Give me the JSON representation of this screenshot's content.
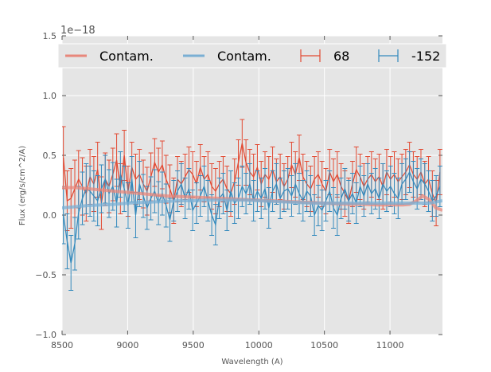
{
  "chart_data": {
    "type": "line",
    "title": "",
    "xlabel": "Wavelength (A)",
    "ylabel": "Flux (erg/s/cm^2/A)",
    "y_offset_label": "1e−18",
    "xlim": [
      8500,
      11400
    ],
    "ylim": [
      -1.0,
      1.5
    ],
    "xticks": [
      8500,
      9000,
      9500,
      10000,
      10500,
      11000
    ],
    "xtick_labels": [
      "8500",
      "9000",
      "9500",
      "10000",
      "10500",
      "11000"
    ],
    "yticks": [
      -1.0,
      -0.5,
      0.0,
      0.5,
      1.0,
      1.5
    ],
    "ytick_labels": [
      "−1.0",
      "−0.5",
      "0.0",
      "0.5",
      "1.0",
      "1.5"
    ],
    "grid": true,
    "legend_placement": "top",
    "legend": [
      {
        "label": "Contam.",
        "kind": "line",
        "color": "#E8877B"
      },
      {
        "label": "Contam.",
        "kind": "line",
        "color": "#7AAFD4"
      },
      {
        "label": "68",
        "kind": "errorbar",
        "color": "#E24A33"
      },
      {
        "label": "-152",
        "kind": "errorbar",
        "color": "#348ABD"
      }
    ],
    "colors": {
      "axes_bg": "#E5E5E5",
      "grid": "#FFFFFF",
      "red": "#E24A33",
      "blue": "#348ABD",
      "red_contam": "#E8877B",
      "blue_contam": "#7AAFD4"
    },
    "series": [
      {
        "name": "68",
        "kind": "errorbar",
        "color": "#E24A33",
        "x": [
          8510,
          8539,
          8568,
          8597,
          8626,
          8655,
          8684,
          8713,
          8742,
          8771,
          8800,
          8829,
          8858,
          8887,
          8916,
          8945,
          8974,
          9003,
          9032,
          9061,
          9090,
          9119,
          9148,
          9177,
          9206,
          9235,
          9264,
          9293,
          9322,
          9351,
          9380,
          9409,
          9438,
          9467,
          9496,
          9525,
          9554,
          9583,
          9612,
          9641,
          9670,
          9699,
          9728,
          9757,
          9786,
          9815,
          9844,
          9873,
          9902,
          9931,
          9960,
          9989,
          10018,
          10047,
          10076,
          10105,
          10134,
          10163,
          10192,
          10221,
          10250,
          10279,
          10308,
          10337,
          10366,
          10395,
          10424,
          10453,
          10482,
          10511,
          10540,
          10569,
          10598,
          10627,
          10656,
          10685,
          10714,
          10743,
          10772,
          10801,
          10830,
          10859,
          10888,
          10917,
          10946,
          10975,
          11004,
          11033,
          11062,
          11091,
          11120,
          11149,
          11178,
          11207,
          11236,
          11265,
          11294,
          11323,
          11352,
          11381
        ],
        "y": [
          0.48,
          0.12,
          0.14,
          0.22,
          0.3,
          0.24,
          0.18,
          0.32,
          0.26,
          0.38,
          0.1,
          0.3,
          0.24,
          0.34,
          0.46,
          0.22,
          0.5,
          0.2,
          0.4,
          0.3,
          0.34,
          0.26,
          0.2,
          0.32,
          0.44,
          0.36,
          0.42,
          0.3,
          0.22,
          0.12,
          0.3,
          0.26,
          0.32,
          0.38,
          0.34,
          0.26,
          0.4,
          0.3,
          0.34,
          0.24,
          0.2,
          0.26,
          0.3,
          0.22,
          0.18,
          0.28,
          0.44,
          0.6,
          0.44,
          0.36,
          0.32,
          0.4,
          0.26,
          0.34,
          0.3,
          0.38,
          0.28,
          0.32,
          0.24,
          0.3,
          0.42,
          0.34,
          0.48,
          0.32,
          0.26,
          0.22,
          0.3,
          0.34,
          0.26,
          0.2,
          0.36,
          0.28,
          0.34,
          0.24,
          0.18,
          0.12,
          0.26,
          0.38,
          0.32,
          0.24,
          0.3,
          0.34,
          0.28,
          0.32,
          0.24,
          0.36,
          0.3,
          0.34,
          0.28,
          0.32,
          0.36,
          0.42,
          0.34,
          0.3,
          0.36,
          0.26,
          0.3,
          0.18,
          0.1,
          0.36
        ],
        "yerr": [
          0.26,
          0.25,
          0.25,
          0.24,
          0.24,
          0.24,
          0.23,
          0.23,
          0.23,
          0.23,
          0.22,
          0.22,
          0.22,
          0.22,
          0.22,
          0.21,
          0.21,
          0.21,
          0.21,
          0.21,
          0.21,
          0.2,
          0.2,
          0.2,
          0.2,
          0.2,
          0.2,
          0.2,
          0.2,
          0.19,
          0.19,
          0.19,
          0.19,
          0.19,
          0.19,
          0.19,
          0.19,
          0.19,
          0.19,
          0.19,
          0.19,
          0.19,
          0.19,
          0.19,
          0.19,
          0.19,
          0.19,
          0.2,
          0.19,
          0.19,
          0.19,
          0.19,
          0.19,
          0.19,
          0.19,
          0.19,
          0.19,
          0.19,
          0.19,
          0.19,
          0.19,
          0.19,
          0.19,
          0.19,
          0.19,
          0.19,
          0.19,
          0.19,
          0.19,
          0.19,
          0.19,
          0.19,
          0.19,
          0.19,
          0.19,
          0.19,
          0.19,
          0.19,
          0.19,
          0.19,
          0.19,
          0.19,
          0.19,
          0.19,
          0.19,
          0.19,
          0.19,
          0.19,
          0.19,
          0.19,
          0.19,
          0.19,
          0.19,
          0.19,
          0.19,
          0.19,
          0.19,
          0.19,
          0.19,
          0.19
        ]
      },
      {
        "name": "-152",
        "kind": "errorbar",
        "color": "#348ABD",
        "x": [
          8510,
          8539,
          8568,
          8597,
          8626,
          8655,
          8684,
          8713,
          8742,
          8771,
          8800,
          8829,
          8858,
          8887,
          8916,
          8945,
          8974,
          9003,
          9032,
          9061,
          9090,
          9119,
          9148,
          9177,
          9206,
          9235,
          9264,
          9293,
          9322,
          9351,
          9380,
          9409,
          9438,
          9467,
          9496,
          9525,
          9554,
          9583,
          9612,
          9641,
          9670,
          9699,
          9728,
          9757,
          9786,
          9815,
          9844,
          9873,
          9902,
          9931,
          9960,
          9989,
          10018,
          10047,
          10076,
          10105,
          10134,
          10163,
          10192,
          10221,
          10250,
          10279,
          10308,
          10337,
          10366,
          10395,
          10424,
          10453,
          10482,
          10511,
          10540,
          10569,
          10598,
          10627,
          10656,
          10685,
          10714,
          10743,
          10772,
          10801,
          10830,
          10859,
          10888,
          10917,
          10946,
          10975,
          11004,
          11033,
          11062,
          11091,
          11120,
          11149,
          11178,
          11207,
          11236,
          11265,
          11294,
          11323,
          11352,
          11381
        ],
        "y": [
          0.0,
          -0.22,
          -0.4,
          -0.24,
          0.02,
          0.14,
          0.22,
          0.2,
          0.16,
          0.12,
          0.22,
          0.3,
          0.18,
          0.24,
          0.1,
          0.34,
          0.22,
          0.08,
          0.3,
          0.0,
          0.26,
          0.16,
          0.06,
          0.14,
          0.2,
          0.1,
          0.18,
          0.08,
          -0.04,
          0.12,
          0.2,
          0.26,
          0.14,
          0.22,
          0.04,
          0.1,
          0.16,
          0.24,
          0.12,
          0.0,
          -0.08,
          0.14,
          0.18,
          0.04,
          0.2,
          0.1,
          0.14,
          0.24,
          0.18,
          0.26,
          0.12,
          0.2,
          0.14,
          0.22,
          0.06,
          0.2,
          0.26,
          0.14,
          0.2,
          0.22,
          0.16,
          0.26,
          0.18,
          0.12,
          0.2,
          0.16,
          0.0,
          0.08,
          0.04,
          0.12,
          0.2,
          0.06,
          0.0,
          0.14,
          0.22,
          0.12,
          0.18,
          0.1,
          0.24,
          0.16,
          0.26,
          0.18,
          0.22,
          0.14,
          0.26,
          0.2,
          0.24,
          0.18,
          0.14,
          0.26,
          0.3,
          0.36,
          0.28,
          0.22,
          0.3,
          0.26,
          0.2,
          0.12,
          0.16,
          0.24
        ],
        "yerr": [
          0.24,
          0.23,
          0.23,
          0.22,
          0.22,
          0.22,
          0.21,
          0.21,
          0.21,
          0.21,
          0.2,
          0.2,
          0.2,
          0.2,
          0.2,
          0.19,
          0.19,
          0.19,
          0.19,
          0.19,
          0.19,
          0.18,
          0.18,
          0.18,
          0.18,
          0.18,
          0.18,
          0.18,
          0.18,
          0.17,
          0.17,
          0.17,
          0.17,
          0.17,
          0.17,
          0.17,
          0.17,
          0.17,
          0.17,
          0.17,
          0.17,
          0.17,
          0.17,
          0.17,
          0.17,
          0.17,
          0.17,
          0.17,
          0.17,
          0.17,
          0.17,
          0.17,
          0.17,
          0.17,
          0.17,
          0.17,
          0.17,
          0.17,
          0.17,
          0.17,
          0.17,
          0.17,
          0.17,
          0.17,
          0.17,
          0.17,
          0.17,
          0.17,
          0.17,
          0.17,
          0.17,
          0.17,
          0.17,
          0.17,
          0.17,
          0.17,
          0.17,
          0.17,
          0.17,
          0.17,
          0.17,
          0.17,
          0.17,
          0.17,
          0.17,
          0.17,
          0.17,
          0.17,
          0.17,
          0.17,
          0.17,
          0.17,
          0.17,
          0.17,
          0.17,
          0.17,
          0.17,
          0.17,
          0.17,
          0.17
        ]
      },
      {
        "name": "Contam.",
        "kind": "line",
        "color": "#E8877B",
        "x": [
          8500,
          8600,
          8700,
          8800,
          8900,
          9000,
          9100,
          9200,
          9300,
          9400,
          9500,
          9600,
          9700,
          9800,
          9900,
          10000,
          10100,
          10200,
          10300,
          10400,
          10500,
          10600,
          10700,
          10800,
          10900,
          11000,
          11100,
          11150,
          11200,
          11250,
          11300,
          11350,
          11400
        ],
        "y": [
          0.23,
          0.23,
          0.22,
          0.21,
          0.2,
          0.19,
          0.18,
          0.17,
          0.16,
          0.155,
          0.15,
          0.145,
          0.14,
          0.135,
          0.13,
          0.125,
          0.12,
          0.115,
          0.11,
          0.105,
          0.1,
          0.095,
          0.09,
          0.09,
          0.085,
          0.085,
          0.085,
          0.09,
          0.12,
          0.16,
          0.13,
          0.06,
          0.04
        ]
      },
      {
        "name": "Contam.",
        "kind": "line",
        "color": "#7AAFD4",
        "x": [
          8500,
          8600,
          8700,
          8800,
          8900,
          9000,
          9100,
          9200,
          9300,
          9400,
          9500,
          9600,
          9700,
          9800,
          9900,
          10000,
          10100,
          10200,
          10300,
          10400,
          10500,
          10600,
          10700,
          10800,
          10900,
          11000,
          11100,
          11200,
          11300,
          11400
        ],
        "y": [
          0.06,
          0.07,
          0.08,
          0.085,
          0.09,
          0.1,
          0.105,
          0.11,
          0.115,
          0.12,
          0.12,
          0.125,
          0.125,
          0.125,
          0.125,
          0.12,
          0.115,
          0.11,
          0.105,
          0.1,
          0.1,
          0.1,
          0.1,
          0.1,
          0.1,
          0.1,
          0.1,
          0.1,
          0.1,
          0.12
        ]
      }
    ]
  }
}
